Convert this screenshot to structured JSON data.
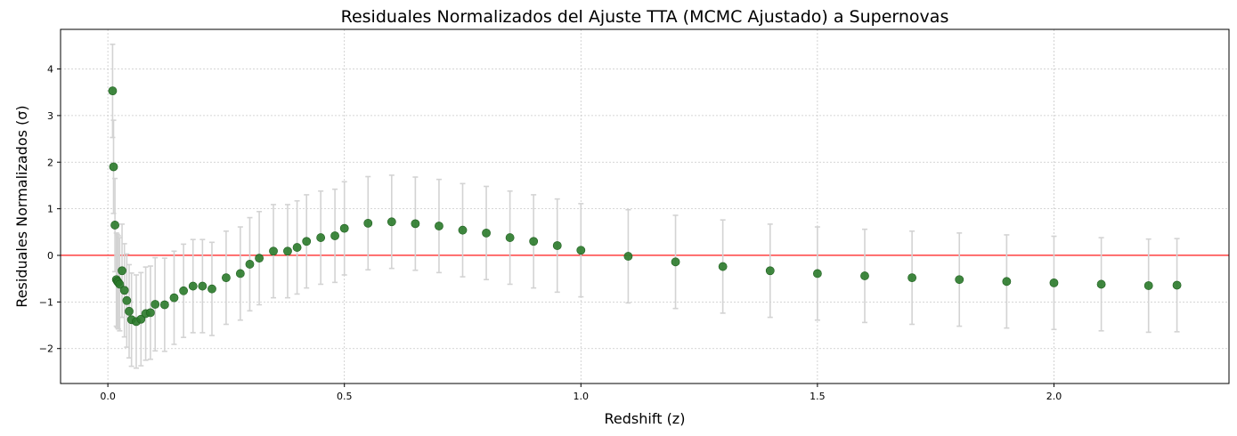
{
  "chart_data": {
    "type": "scatter",
    "title": "Residuales Normalizados del Ajuste TTA (MCMC Ajustado) a Supernovas",
    "xlabel": "Redshift (z)",
    "ylabel": "Residuales Normalizados (σ)",
    "xlim": [
      -0.1,
      2.37
    ],
    "ylim": [
      -2.75,
      4.85
    ],
    "xticks": [
      0.0,
      0.5,
      1.0,
      1.5,
      2.0
    ],
    "xtick_labels": [
      "0.0",
      "0.5",
      "1.0",
      "1.5",
      "2.0"
    ],
    "yticks": [
      -2,
      -1,
      0,
      1,
      2,
      3,
      4
    ],
    "ytick_labels": [
      "−2",
      "−1",
      "0",
      "1",
      "2",
      "3",
      "4"
    ],
    "grid": true,
    "reference_line": {
      "y": 0,
      "color": "#ff0000"
    },
    "marker_color": "#2a7a2a",
    "errorbar_color": "#d3d3d3",
    "error": 1.0,
    "series": [
      {
        "x": [
          0.01,
          0.012,
          0.015,
          0.018,
          0.02,
          0.022,
          0.025,
          0.03,
          0.035,
          0.04,
          0.045,
          0.05,
          0.06,
          0.07,
          0.08,
          0.09,
          0.1,
          0.12,
          0.14,
          0.16,
          0.18,
          0.2,
          0.22,
          0.25,
          0.28,
          0.3,
          0.32,
          0.35,
          0.38,
          0.4,
          0.42,
          0.45,
          0.48,
          0.5,
          0.55,
          0.6,
          0.65,
          0.7,
          0.75,
          0.8,
          0.85,
          0.9,
          0.95,
          1.0,
          1.1,
          1.2,
          1.3,
          1.4,
          1.5,
          1.6,
          1.7,
          1.8,
          1.9,
          2.0,
          2.1,
          2.2,
          2.26
        ],
        "y": [
          3.53,
          1.9,
          0.65,
          -0.52,
          -0.55,
          -0.58,
          -0.62,
          -0.33,
          -0.75,
          -0.97,
          -1.2,
          -1.38,
          -1.42,
          -1.37,
          -1.25,
          -1.23,
          -1.05,
          -1.06,
          -0.91,
          -0.76,
          -0.66,
          -0.66,
          -0.72,
          -0.48,
          -0.39,
          -0.19,
          -0.06,
          0.09,
          0.09,
          0.17,
          0.3,
          0.38,
          0.42,
          0.58,
          0.69,
          0.72,
          0.68,
          0.63,
          0.54,
          0.48,
          0.38,
          0.3,
          0.21,
          0.11,
          -0.02,
          -0.14,
          -0.24,
          -0.33,
          -0.39,
          -0.44,
          -0.48,
          -0.52,
          -0.56,
          -0.59,
          -0.62,
          -0.65,
          -0.64
        ]
      }
    ]
  }
}
